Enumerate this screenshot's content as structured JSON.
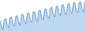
{
  "chart_data": {
    "type": "area",
    "x": [
      0,
      1,
      2,
      3,
      4,
      5,
      6,
      7,
      8,
      9,
      10,
      11,
      12,
      13,
      14,
      15,
      16,
      17,
      18,
      19,
      20,
      21,
      22,
      23,
      24,
      25,
      26,
      27,
      28,
      29,
      30,
      31,
      32,
      33,
      34,
      35,
      36,
      37,
      38,
      39,
      40,
      41,
      42,
      43,
      44,
      45,
      46,
      47,
      48,
      49,
      50,
      51,
      52,
      53,
      54,
      55,
      56,
      57,
      58,
      59
    ],
    "values": [
      78,
      65,
      58,
      80,
      82,
      68,
      62,
      84,
      85,
      70,
      65,
      87,
      88,
      73,
      67,
      90,
      91,
      75,
      70,
      93,
      94,
      78,
      73,
      96,
      97,
      81,
      76,
      99,
      100,
      84,
      79,
      102,
      103,
      87,
      82,
      105,
      106,
      90,
      85,
      108,
      109,
      93,
      88,
      111,
      112,
      95,
      90,
      113,
      114,
      97,
      92,
      115,
      116,
      99,
      94,
      117,
      118,
      101,
      96,
      119
    ],
    "color": "#5b9bd5",
    "xlim": [
      0,
      59
    ],
    "ylim": [
      55,
      122
    ],
    "grid": false,
    "tick_labels": false
  }
}
